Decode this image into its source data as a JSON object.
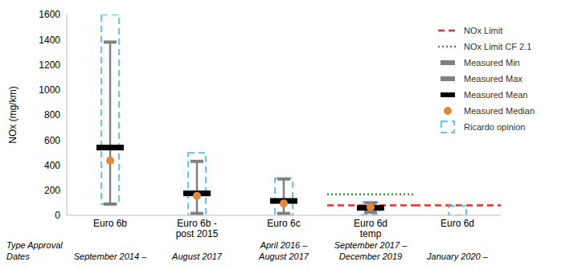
{
  "chart_data": {
    "type": "range",
    "y_label": "NOx (mg/km)",
    "categories": [
      "Euro 6b",
      "Euro 6b - post 2015",
      "Euro 6c",
      "Euro 6d temp",
      "Euro 6d"
    ],
    "ylim": [
      0,
      1600
    ],
    "yticks": [
      0,
      200,
      400,
      600,
      800,
      1000,
      1200,
      1400,
      1600
    ],
    "grid": false,
    "legend": "top right",
    "series": [
      {
        "name": "NOx Limit",
        "color": "#e8312a",
        "line_style": "dashed",
        "values": [
          null,
          null,
          null,
          80,
          80
        ]
      },
      {
        "name": "NOx Limit CF 2.1",
        "color": "#3a9a3a",
        "line_style": "dotted",
        "values": [
          null,
          null,
          null,
          168,
          null
        ]
      },
      {
        "name": "Measured Min",
        "color": "#808080",
        "values": [
          90,
          15,
          15,
          25,
          null
        ]
      },
      {
        "name": "Measured Max",
        "color": "#808080",
        "values": [
          1380,
          430,
          290,
          100,
          null
        ]
      },
      {
        "name": "Measured Mean",
        "color": "#000000",
        "values": [
          540,
          175,
          115,
          60,
          null
        ]
      },
      {
        "name": "Measured Median",
        "color": "#e08a3c",
        "marker": "circle",
        "values": [
          435,
          155,
          95,
          65,
          null
        ]
      },
      {
        "name": "Ricardo opinion",
        "color": "#33b5e5",
        "line_style": "dashed",
        "low": [
          90,
          0,
          0,
          5,
          0
        ],
        "high": [
          1600,
          500,
          295,
          105,
          75
        ]
      }
    ],
    "annotations": {
      "row_title": "Type Approval Dates",
      "row_texts": [
        "September 2014 –",
        "August 2017",
        "April 2016 – August 2017",
        "September 2017 – December 2019",
        "January 2020 –"
      ]
    }
  }
}
